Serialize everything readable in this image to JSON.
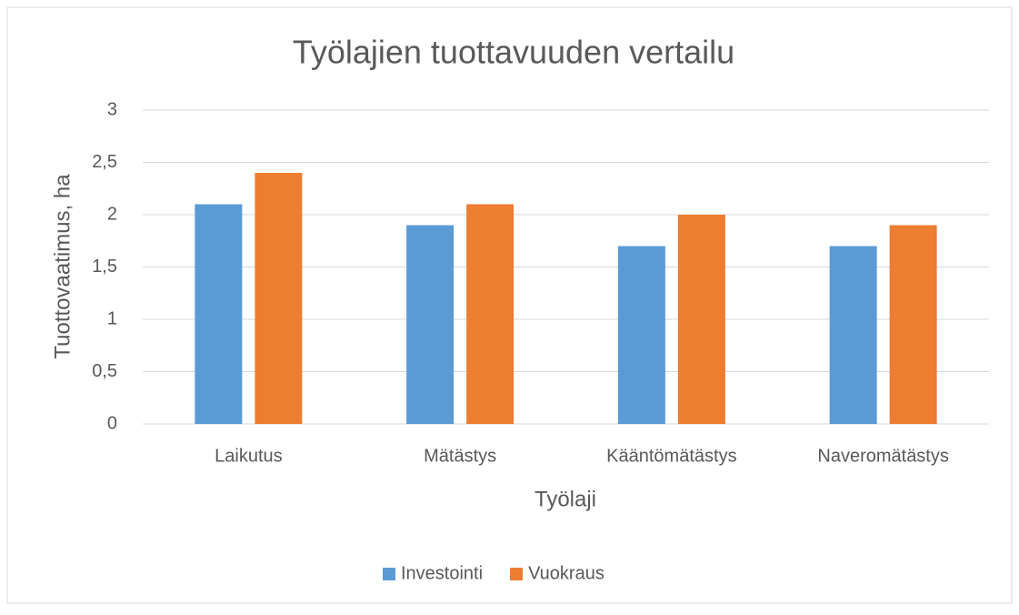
{
  "chart_data": {
    "type": "bar",
    "title": "Työlajien tuottavuuden vertailu",
    "x_label": "Työlaji",
    "y_label": "Tuottovaatimus, ha",
    "categories": [
      "Laikutus",
      "Mätästys",
      "Kääntömätästys",
      "Naveromätästys"
    ],
    "series": [
      {
        "name": "Investointi",
        "color": "#5b9bd5",
        "values": [
          2.1,
          1.9,
          1.7,
          1.7
        ]
      },
      {
        "name": "Vuokraus",
        "color": "#ed7d31",
        "values": [
          2.4,
          2.1,
          2.0,
          1.9
        ]
      }
    ],
    "ylim": [
      0,
      3
    ],
    "yticks": [
      0,
      {
        "value": 0.5,
        "label": "0,5"
      },
      1,
      {
        "value": 1.5,
        "label": "1,5"
      },
      2,
      {
        "value": 2.5,
        "label": "2,5"
      },
      3
    ],
    "grid": true,
    "legend": "bottom"
  }
}
